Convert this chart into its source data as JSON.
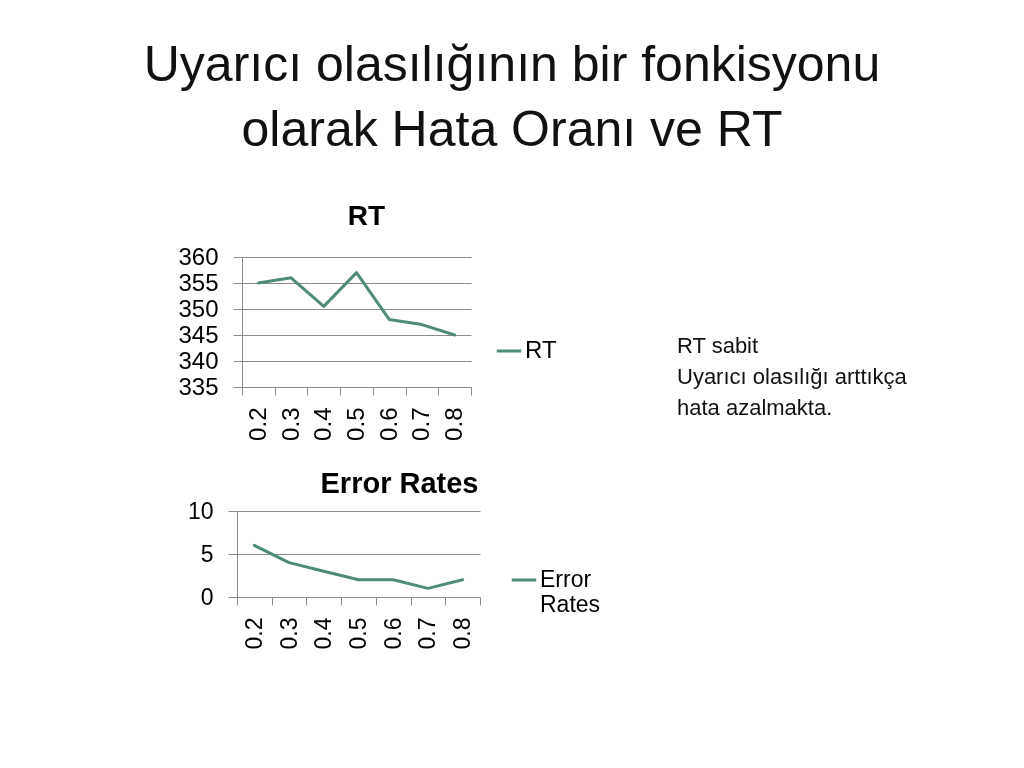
{
  "chart_data": [
    {
      "type": "other",
      "title": "Uyarıcı olasılığının bir fonkisyonu olarak Hata Oranı ve RT",
      "annotations": [
        "RT sabit",
        "Uyarıcı olasılığı arttıkça hata azalmakta."
      ]
    },
    {
      "type": "line",
      "title": "RT",
      "categories": [
        "0.2",
        "0.3",
        "0.4",
        "0.5",
        "0.6",
        "0.7",
        "0.8"
      ],
      "series": [
        {
          "name": "RT",
          "color": "#4f8b76",
          "values": [
            355,
            356,
            350.5,
            357,
            348,
            347,
            345
          ]
        }
      ],
      "ylim": [
        335,
        360
      ],
      "yticks": [
        335,
        340,
        345,
        350,
        355,
        360
      ],
      "grid": "y",
      "legend": "right"
    },
    {
      "type": "line",
      "title": "Error Rates",
      "categories": [
        "0.2",
        "0.3",
        "0.4",
        "0.5",
        "0.6",
        "0.7",
        "0.8"
      ],
      "series": [
        {
          "name": "Error Rates",
          "color": "#4f8b76",
          "values": [
            6,
            4,
            3,
            2,
            2,
            1,
            2
          ]
        }
      ],
      "ylim": [
        0,
        10
      ],
      "yticks": [
        0,
        5,
        10
      ],
      "grid": "y",
      "legend": "right"
    }
  ]
}
